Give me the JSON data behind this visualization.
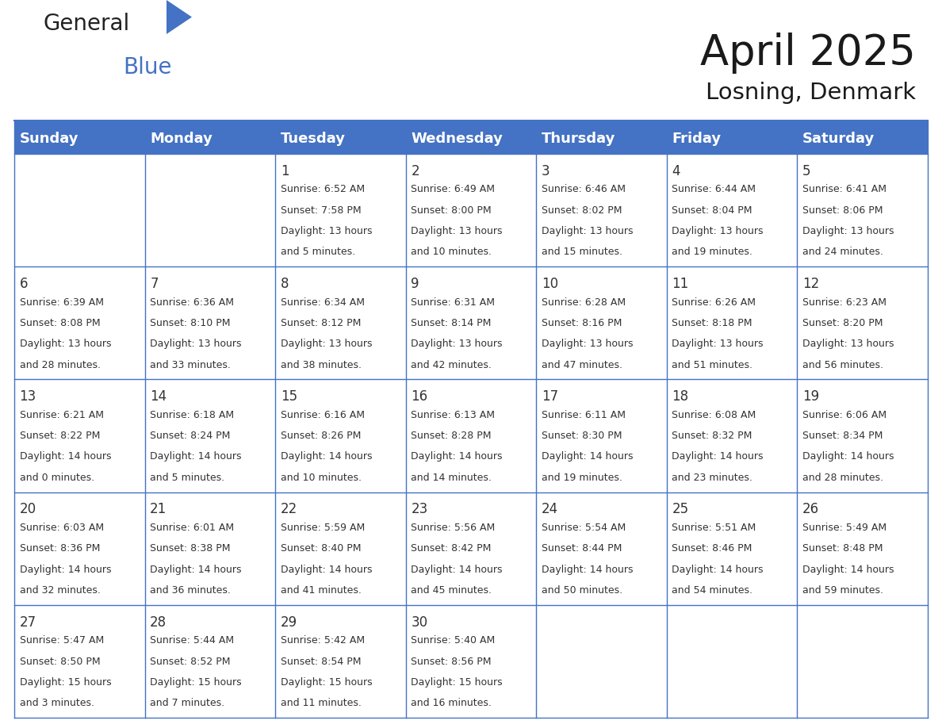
{
  "title": "April 2025",
  "subtitle": "Losning, Denmark",
  "header_color": "#4472C4",
  "header_text_color": "#FFFFFF",
  "cell_bg_color": "#FFFFFF",
  "border_color": "#4472C4",
  "text_color": "#333333",
  "days_of_week": [
    "Sunday",
    "Monday",
    "Tuesday",
    "Wednesday",
    "Thursday",
    "Friday",
    "Saturday"
  ],
  "weeks": [
    [
      {
        "day": "",
        "lines": []
      },
      {
        "day": "",
        "lines": []
      },
      {
        "day": "1",
        "lines": [
          "Sunrise: 6:52 AM",
          "Sunset: 7:58 PM",
          "Daylight: 13 hours",
          "and 5 minutes."
        ]
      },
      {
        "day": "2",
        "lines": [
          "Sunrise: 6:49 AM",
          "Sunset: 8:00 PM",
          "Daylight: 13 hours",
          "and 10 minutes."
        ]
      },
      {
        "day": "3",
        "lines": [
          "Sunrise: 6:46 AM",
          "Sunset: 8:02 PM",
          "Daylight: 13 hours",
          "and 15 minutes."
        ]
      },
      {
        "day": "4",
        "lines": [
          "Sunrise: 6:44 AM",
          "Sunset: 8:04 PM",
          "Daylight: 13 hours",
          "and 19 minutes."
        ]
      },
      {
        "day": "5",
        "lines": [
          "Sunrise: 6:41 AM",
          "Sunset: 8:06 PM",
          "Daylight: 13 hours",
          "and 24 minutes."
        ]
      }
    ],
    [
      {
        "day": "6",
        "lines": [
          "Sunrise: 6:39 AM",
          "Sunset: 8:08 PM",
          "Daylight: 13 hours",
          "and 28 minutes."
        ]
      },
      {
        "day": "7",
        "lines": [
          "Sunrise: 6:36 AM",
          "Sunset: 8:10 PM",
          "Daylight: 13 hours",
          "and 33 minutes."
        ]
      },
      {
        "day": "8",
        "lines": [
          "Sunrise: 6:34 AM",
          "Sunset: 8:12 PM",
          "Daylight: 13 hours",
          "and 38 minutes."
        ]
      },
      {
        "day": "9",
        "lines": [
          "Sunrise: 6:31 AM",
          "Sunset: 8:14 PM",
          "Daylight: 13 hours",
          "and 42 minutes."
        ]
      },
      {
        "day": "10",
        "lines": [
          "Sunrise: 6:28 AM",
          "Sunset: 8:16 PM",
          "Daylight: 13 hours",
          "and 47 minutes."
        ]
      },
      {
        "day": "11",
        "lines": [
          "Sunrise: 6:26 AM",
          "Sunset: 8:18 PM",
          "Daylight: 13 hours",
          "and 51 minutes."
        ]
      },
      {
        "day": "12",
        "lines": [
          "Sunrise: 6:23 AM",
          "Sunset: 8:20 PM",
          "Daylight: 13 hours",
          "and 56 minutes."
        ]
      }
    ],
    [
      {
        "day": "13",
        "lines": [
          "Sunrise: 6:21 AM",
          "Sunset: 8:22 PM",
          "Daylight: 14 hours",
          "and 0 minutes."
        ]
      },
      {
        "day": "14",
        "lines": [
          "Sunrise: 6:18 AM",
          "Sunset: 8:24 PM",
          "Daylight: 14 hours",
          "and 5 minutes."
        ]
      },
      {
        "day": "15",
        "lines": [
          "Sunrise: 6:16 AM",
          "Sunset: 8:26 PM",
          "Daylight: 14 hours",
          "and 10 minutes."
        ]
      },
      {
        "day": "16",
        "lines": [
          "Sunrise: 6:13 AM",
          "Sunset: 8:28 PM",
          "Daylight: 14 hours",
          "and 14 minutes."
        ]
      },
      {
        "day": "17",
        "lines": [
          "Sunrise: 6:11 AM",
          "Sunset: 8:30 PM",
          "Daylight: 14 hours",
          "and 19 minutes."
        ]
      },
      {
        "day": "18",
        "lines": [
          "Sunrise: 6:08 AM",
          "Sunset: 8:32 PM",
          "Daylight: 14 hours",
          "and 23 minutes."
        ]
      },
      {
        "day": "19",
        "lines": [
          "Sunrise: 6:06 AM",
          "Sunset: 8:34 PM",
          "Daylight: 14 hours",
          "and 28 minutes."
        ]
      }
    ],
    [
      {
        "day": "20",
        "lines": [
          "Sunrise: 6:03 AM",
          "Sunset: 8:36 PM",
          "Daylight: 14 hours",
          "and 32 minutes."
        ]
      },
      {
        "day": "21",
        "lines": [
          "Sunrise: 6:01 AM",
          "Sunset: 8:38 PM",
          "Daylight: 14 hours",
          "and 36 minutes."
        ]
      },
      {
        "day": "22",
        "lines": [
          "Sunrise: 5:59 AM",
          "Sunset: 8:40 PM",
          "Daylight: 14 hours",
          "and 41 minutes."
        ]
      },
      {
        "day": "23",
        "lines": [
          "Sunrise: 5:56 AM",
          "Sunset: 8:42 PM",
          "Daylight: 14 hours",
          "and 45 minutes."
        ]
      },
      {
        "day": "24",
        "lines": [
          "Sunrise: 5:54 AM",
          "Sunset: 8:44 PM",
          "Daylight: 14 hours",
          "and 50 minutes."
        ]
      },
      {
        "day": "25",
        "lines": [
          "Sunrise: 5:51 AM",
          "Sunset: 8:46 PM",
          "Daylight: 14 hours",
          "and 54 minutes."
        ]
      },
      {
        "day": "26",
        "lines": [
          "Sunrise: 5:49 AM",
          "Sunset: 8:48 PM",
          "Daylight: 14 hours",
          "and 59 minutes."
        ]
      }
    ],
    [
      {
        "day": "27",
        "lines": [
          "Sunrise: 5:47 AM",
          "Sunset: 8:50 PM",
          "Daylight: 15 hours",
          "and 3 minutes."
        ]
      },
      {
        "day": "28",
        "lines": [
          "Sunrise: 5:44 AM",
          "Sunset: 8:52 PM",
          "Daylight: 15 hours",
          "and 7 minutes."
        ]
      },
      {
        "day": "29",
        "lines": [
          "Sunrise: 5:42 AM",
          "Sunset: 8:54 PM",
          "Daylight: 15 hours",
          "and 11 minutes."
        ]
      },
      {
        "day": "30",
        "lines": [
          "Sunrise: 5:40 AM",
          "Sunset: 8:56 PM",
          "Daylight: 15 hours",
          "and 16 minutes."
        ]
      },
      {
        "day": "",
        "lines": []
      },
      {
        "day": "",
        "lines": []
      },
      {
        "day": "",
        "lines": []
      }
    ]
  ],
  "title_fontsize": 38,
  "subtitle_fontsize": 21,
  "header_fontsize": 13,
  "day_num_fontsize": 12,
  "cell_text_fontsize": 9
}
